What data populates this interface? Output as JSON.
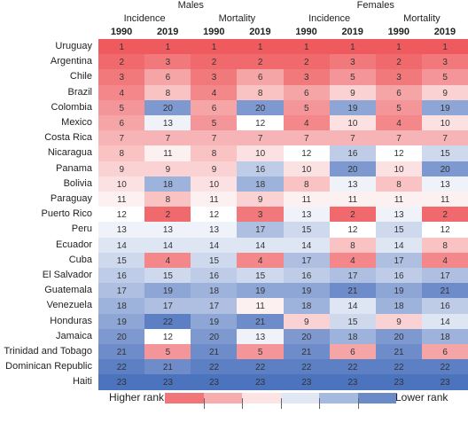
{
  "chart_data": {
    "type": "heatmap",
    "groups": [
      {
        "name": "Males",
        "measures": [
          {
            "name": "Incidence",
            "years": [
              "1990",
              "2019"
            ]
          },
          {
            "name": "Mortality",
            "years": [
              "1990",
              "2019"
            ]
          }
        ]
      },
      {
        "name": "Females",
        "measures": [
          {
            "name": "Incidence",
            "years": [
              "1990",
              "2019"
            ]
          },
          {
            "name": "Mortality",
            "years": [
              "1990",
              "2019"
            ]
          }
        ]
      }
    ],
    "columns": [
      "Males Incidence 1990",
      "Males Incidence 2019",
      "Males Mortality 1990",
      "Males Mortality 2019",
      "Females Incidence 1990",
      "Females Incidence 2019",
      "Females Mortality 1990",
      "Females Mortality 2019"
    ],
    "countries": [
      "Uruguay",
      "Argentina",
      "Chile",
      "Brazil",
      "Colombia",
      "Mexico",
      "Costa Rica",
      "Nicaragua",
      "Panama",
      "Bolivia",
      "Paraguay",
      "Puerto Rico",
      "Peru",
      "Ecuador",
      "Cuba",
      "El Salvador",
      "Guatemala",
      "Venezuela",
      "Honduras",
      "Jamaica",
      "Trinidad and Tobago",
      "Dominican Republic",
      "Haiti"
    ],
    "values": [
      [
        1,
        1,
        1,
        1,
        1,
        1,
        1,
        1
      ],
      [
        2,
        3,
        2,
        2,
        2,
        3,
        2,
        3
      ],
      [
        3,
        6,
        3,
        6,
        3,
        5,
        3,
        5
      ],
      [
        4,
        8,
        4,
        8,
        6,
        9,
        6,
        9
      ],
      [
        5,
        20,
        6,
        20,
        5,
        19,
        5,
        19
      ],
      [
        6,
        13,
        5,
        12,
        4,
        10,
        4,
        10
      ],
      [
        7,
        7,
        7,
        7,
        7,
        7,
        7,
        7
      ],
      [
        8,
        11,
        8,
        10,
        12,
        16,
        12,
        15
      ],
      [
        9,
        9,
        9,
        16,
        10,
        20,
        10,
        20
      ],
      [
        10,
        18,
        10,
        18,
        8,
        13,
        8,
        13
      ],
      [
        11,
        8,
        11,
        9,
        11,
        11,
        11,
        11
      ],
      [
        12,
        2,
        12,
        3,
        13,
        2,
        13,
        2
      ],
      [
        13,
        13,
        13,
        17,
        15,
        12,
        15,
        12
      ],
      [
        14,
        14,
        14,
        14,
        14,
        8,
        14,
        8
      ],
      [
        15,
        4,
        15,
        4,
        17,
        4,
        17,
        4
      ],
      [
        16,
        15,
        16,
        15,
        16,
        17,
        16,
        17
      ],
      [
        17,
        19,
        18,
        19,
        19,
        21,
        19,
        21
      ],
      [
        18,
        17,
        17,
        11,
        18,
        14,
        18,
        16
      ],
      [
        19,
        22,
        19,
        21,
        9,
        15,
        9,
        14
      ],
      [
        20,
        12,
        20,
        13,
        20,
        18,
        20,
        18
      ],
      [
        21,
        5,
        21,
        5,
        21,
        6,
        21,
        6
      ],
      [
        22,
        21,
        22,
        22,
        22,
        22,
        22,
        22
      ],
      [
        23,
        23,
        23,
        23,
        23,
        23,
        23,
        23
      ]
    ],
    "value_range": [
      1,
      23
    ],
    "legend": {
      "low_label": "Higher rank",
      "high_label": "Lower rank",
      "placement": "bottom"
    },
    "colors": {
      "high_rank": "#ee5a5e",
      "mid_rank": "#ffffff",
      "low_rank": "#4c73bd"
    }
  }
}
